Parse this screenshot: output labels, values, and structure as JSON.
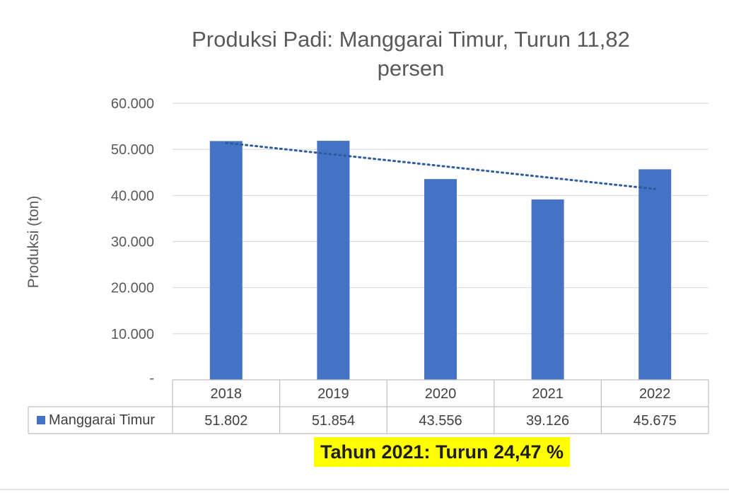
{
  "chart_data": {
    "type": "bar",
    "title_lines": [
      "Produksi Padi: Manggarai Timur,  Turun 11,82",
      "persen"
    ],
    "ylabel": "Produksi (ton)",
    "xlabel": "",
    "categories": [
      "2018",
      "2019",
      "2020",
      "2021",
      "2022"
    ],
    "series": [
      {
        "name": "Manggarai Timur",
        "values": [
          51802,
          51854,
          43556,
          39126,
          45675
        ],
        "value_labels": [
          "51.802",
          "51.854",
          "43.556",
          "39.126",
          "45.675"
        ],
        "color": "#4472C4"
      }
    ],
    "ylim": [
      0,
      60000
    ],
    "y_ticks": [
      0,
      10000,
      20000,
      30000,
      40000,
      50000,
      60000
    ],
    "y_tick_labels": [
      "-",
      "10.000",
      "20.000",
      "30.000",
      "40.000",
      "50.000",
      "60.000"
    ],
    "grid": true,
    "legend": "data-table",
    "trendline": {
      "type": "linear",
      "style": "dotted",
      "color": "#2E5C9E"
    },
    "annotation": {
      "text": "Tahun 2021: Turun 24,47  %",
      "background": "#FFFF00"
    }
  }
}
